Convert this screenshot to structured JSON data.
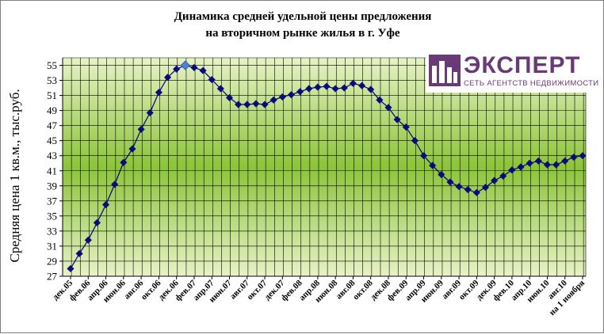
{
  "chart_data": {
    "type": "line",
    "title": "Динамика средней удельной цены предложения на вторичном рынке жилья в г. Уфе",
    "title_lines": [
      "Динамика средней удельной цены предложения",
      "на вторичном рынке жилья в г. Уфе"
    ],
    "ylabel": "Средняя цена 1 кв.м., тыс.руб.",
    "xlabel": "",
    "ylim": [
      27,
      56
    ],
    "yticks": [
      27,
      29,
      31,
      33,
      35,
      37,
      39,
      41,
      43,
      45,
      47,
      49,
      51,
      53,
      55
    ],
    "grid": true,
    "legend": "none",
    "x_tick_labels": [
      "дек.05",
      "фев.06",
      "апр.06",
      "июн.06",
      "авг.06",
      "окт.06",
      "дек.06",
      "фев.07",
      "апр.07",
      "июн.07",
      "авг.07",
      "окт.07",
      "дек.07",
      "фев.08",
      "апр.08",
      "июн.08",
      "авг.08",
      "окт.08",
      "дек.08",
      "фев.09",
      "апр.09",
      "июн.09",
      "авг.09",
      "окт.09",
      "дек.09",
      "фев.10",
      "апр.10",
      "июн.10",
      "авг.10",
      "на 1 ноября"
    ],
    "x_tick_positions": [
      0,
      2,
      4,
      6,
      8,
      10,
      12,
      14,
      16,
      18,
      20,
      22,
      24,
      26,
      28,
      30,
      32,
      34,
      36,
      38,
      40,
      42,
      44,
      46,
      48,
      50,
      52,
      54,
      56,
      58
    ],
    "series": [
      {
        "values": [
          28.0,
          30.0,
          31.8,
          34.1,
          36.5,
          39.2,
          42.1,
          43.9,
          46.5,
          48.7,
          51.4,
          53.4,
          54.5,
          55.0,
          54.7,
          54.3,
          53.1,
          51.9,
          50.7,
          49.8,
          49.8,
          49.9,
          49.8,
          50.4,
          50.8,
          51.1,
          51.5,
          51.9,
          52.1,
          52.2,
          51.9,
          52.0,
          52.6,
          52.3,
          51.8,
          50.4,
          49.4,
          47.8,
          46.8,
          45.0,
          43.0,
          41.7,
          40.5,
          39.5,
          38.9,
          38.5,
          38.1,
          38.8,
          39.7,
          40.3,
          41.1,
          41.5,
          42.0,
          42.3,
          41.8,
          41.8,
          42.3,
          42.8,
          43.0
        ],
        "highlight_index": 13
      }
    ],
    "colors": {
      "line": "#00007a",
      "marker": "#0a0a7a",
      "highlight_marker": "#4f81d8",
      "plot_light": "#e7f2c6",
      "plot_dark": "#8cc43a",
      "grid": "#000000"
    }
  },
  "logo": {
    "word": "ЭКСПЕРТ",
    "sub": "СЕТЬ АГЕНТСТВ НЕДВИЖИМОСТИ"
  }
}
